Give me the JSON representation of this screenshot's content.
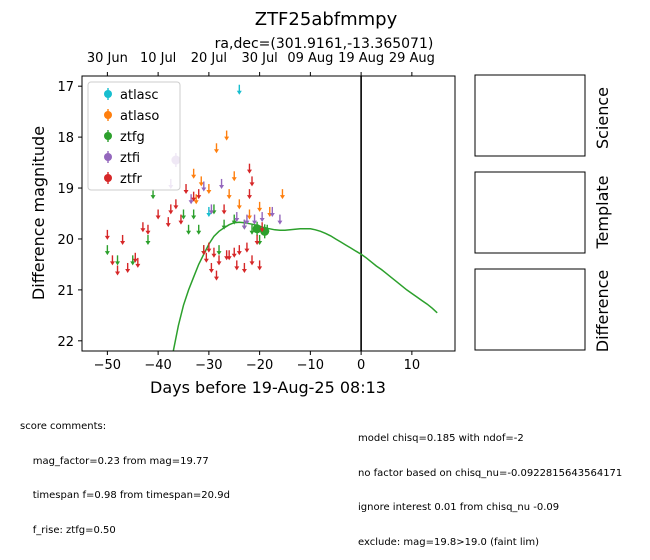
{
  "chart_data": {
    "type": "scatter",
    "title": "ZTF25abfmmpy",
    "subtitle": "ra,dec=(301.9161,-13.365071)",
    "xlabel": "Days before 19-Aug-25 08:13",
    "ylabel": "Difference magnitude",
    "xlim": [
      -55,
      18.5
    ],
    "ylim": [
      22.2,
      16.8
    ],
    "y_inverted": true,
    "x_ticks": [
      -50,
      -40,
      -30,
      -20,
      -10,
      0,
      10
    ],
    "x_tick_labels": [
      "−50",
      "−40",
      "−30",
      "−20",
      "−10",
      "0",
      "10"
    ],
    "y_ticks": [
      17,
      18,
      19,
      20,
      21,
      22
    ],
    "y_tick_labels": [
      "17",
      "18",
      "19",
      "20",
      "21",
      "22"
    ],
    "top_axis_ticks": [
      {
        "x": -50,
        "label": "30 Jun"
      },
      {
        "x": -40,
        "label": "10 Jul"
      },
      {
        "x": -30,
        "label": "20 Jul"
      },
      {
        "x": -20,
        "label": "30 Jul"
      },
      {
        "x": -10,
        "label": "09 Aug"
      },
      {
        "x": 0,
        "label": "19 Aug"
      },
      {
        "x": 10,
        "label": "29 Aug"
      }
    ],
    "vline_x": 0,
    "legend": {
      "placement": "upper-left",
      "entries": [
        {
          "name": "atlasc",
          "color": "#17becf"
        },
        {
          "name": "atlaso",
          "color": "#ff7f0e"
        },
        {
          "name": "ztfg",
          "color": "#2ca02c"
        },
        {
          "name": "ztfi",
          "color": "#9467bd"
        },
        {
          "name": "ztfr",
          "color": "#d62728"
        }
      ]
    },
    "series": [
      {
        "name": "atlasc",
        "color": "#17becf",
        "upper_limits": [
          [
            -24.0,
            17.05
          ],
          [
            -30.0,
            19.45
          ]
        ],
        "detections": []
      },
      {
        "name": "atlaso",
        "color": "#ff7f0e",
        "upper_limits": [
          [
            -28.5,
            18.2
          ],
          [
            -26.5,
            17.95
          ],
          [
            -33.0,
            18.7
          ],
          [
            -31.5,
            18.85
          ],
          [
            -30.0,
            19.0
          ],
          [
            -26.0,
            19.1
          ],
          [
            -25.0,
            18.75
          ],
          [
            -24.0,
            19.3
          ],
          [
            -22.0,
            19.5
          ],
          [
            -20.0,
            19.35
          ],
          [
            -18.0,
            19.45
          ],
          [
            -15.5,
            19.1
          ],
          [
            -32.5,
            19.2
          ]
        ],
        "detections": []
      },
      {
        "name": "ztfg",
        "color": "#2ca02c",
        "upper_limits": [
          [
            -50.0,
            20.2
          ],
          [
            -48.0,
            20.4
          ],
          [
            -45.0,
            20.4
          ],
          [
            -42.0,
            20.0
          ],
          [
            -41.0,
            19.1
          ],
          [
            -35.0,
            19.5
          ],
          [
            -34.0,
            19.8
          ],
          [
            -33.0,
            19.5
          ],
          [
            -32.0,
            19.8
          ],
          [
            -31.0,
            20.2
          ],
          [
            -29.0,
            19.4
          ],
          [
            -28.0,
            20.2
          ],
          [
            -27.0,
            19.7
          ],
          [
            -25.0,
            19.6
          ],
          [
            -23.0,
            19.7
          ],
          [
            -21.5,
            19.8
          ],
          [
            -20.0,
            20.0
          ],
          [
            -18.5,
            19.8
          ]
        ],
        "detections": [
          [
            -20.5,
            19.8
          ],
          [
            -19.0,
            19.85
          ]
        ]
      },
      {
        "name": "ztfi",
        "color": "#9467bd",
        "upper_limits": [
          [
            -37.5,
            18.9
          ],
          [
            -33.5,
            19.2
          ],
          [
            -31.0,
            18.95
          ],
          [
            -29.5,
            19.4
          ],
          [
            -27.5,
            18.9
          ],
          [
            -24.5,
            19.55
          ],
          [
            -22.5,
            19.6
          ],
          [
            -21.0,
            19.6
          ],
          [
            -19.5,
            19.55
          ],
          [
            -17.5,
            19.45
          ],
          [
            -23.0,
            19.7
          ],
          [
            -16.0,
            19.6
          ]
        ],
        "detections": [
          [
            -36.5,
            18.45
          ]
        ]
      },
      {
        "name": "ztfr",
        "color": "#d62728",
        "upper_limits": [
          [
            -50.0,
            19.9
          ],
          [
            -49.0,
            20.4
          ],
          [
            -48.0,
            20.6
          ],
          [
            -47.0,
            20.0
          ],
          [
            -46.0,
            20.55
          ],
          [
            -44.5,
            20.35
          ],
          [
            -44.0,
            20.45
          ],
          [
            -43.0,
            19.75
          ],
          [
            -42.0,
            19.8
          ],
          [
            -40.0,
            19.5
          ],
          [
            -38.0,
            19.65
          ],
          [
            -37.5,
            19.4
          ],
          [
            -36.5,
            19.3
          ],
          [
            -35.5,
            19.6
          ],
          [
            -34.5,
            19.0
          ],
          [
            -33.0,
            19.15
          ],
          [
            -32.0,
            19.1
          ],
          [
            -31.0,
            20.2
          ],
          [
            -30.5,
            20.35
          ],
          [
            -30.0,
            20.15
          ],
          [
            -29.5,
            20.55
          ],
          [
            -29.0,
            20.25
          ],
          [
            -28.5,
            20.7
          ],
          [
            -28.0,
            20.4
          ],
          [
            -27.0,
            19.4
          ],
          [
            -26.5,
            20.3
          ],
          [
            -26.0,
            20.3
          ],
          [
            -25.0,
            20.25
          ],
          [
            -24.5,
            20.5
          ],
          [
            -24.0,
            20.2
          ],
          [
            -23.0,
            20.55
          ],
          [
            -22.5,
            20.15
          ],
          [
            -22.0,
            19.1
          ],
          [
            -22.0,
            18.6
          ],
          [
            -21.5,
            18.85
          ],
          [
            -21.5,
            20.4
          ],
          [
            -20.5,
            20.0
          ],
          [
            -20.0,
            20.5
          ],
          [
            -19.5,
            19.75
          ]
        ],
        "detections": []
      }
    ],
    "model_curve": {
      "color": "#2ca02c",
      "x": [
        -37.0,
        -36.0,
        -35.0,
        -34.0,
        -33.0,
        -32.0,
        -31.0,
        -30.0,
        -29.0,
        -28.0,
        -27.0,
        -26.0,
        -25.0,
        -24.0,
        -23.0,
        -22.0,
        -21.0,
        -20.0,
        -19.0,
        -18.0,
        -17.0,
        -16.0,
        -15.0,
        -14.0,
        -13.0,
        -12.0,
        -11.0,
        -10.0,
        -9.0,
        -8.0,
        -7.0,
        -6.0,
        -5.0,
        -4.0,
        -3.0,
        -2.0,
        -1.0,
        0.0,
        1.0,
        2.0,
        3.0,
        4.0,
        5.0,
        6.0,
        7.0,
        8.0,
        9.0,
        10.0,
        11.0,
        12.0,
        13.0,
        14.0,
        15.0
      ],
      "y": [
        22.2,
        21.7,
        21.3,
        21.0,
        20.75,
        20.5,
        20.3,
        20.1,
        19.95,
        19.85,
        19.78,
        19.72,
        19.68,
        19.67,
        19.68,
        19.7,
        19.72,
        19.75,
        19.78,
        19.8,
        19.82,
        19.83,
        19.83,
        19.82,
        19.81,
        19.8,
        19.8,
        19.8,
        19.82,
        19.85,
        19.89,
        19.94,
        20.0,
        20.06,
        20.12,
        20.18,
        20.24,
        20.3,
        20.37,
        20.45,
        20.53,
        20.6,
        20.68,
        20.76,
        20.84,
        20.92,
        21.0,
        21.07,
        21.14,
        21.21,
        21.28,
        21.36,
        21.45
      ]
    }
  },
  "panels": {
    "science_label": "Science",
    "template_label": "Template",
    "difference_label": "Difference"
  },
  "footer": {
    "left_lines": [
      "score comments:",
      "    mag_factor=0.23 from mag=19.77",
      "    timespan f=0.98 from timespan=20.9d",
      "    f_rise: ztfg=0.50"
    ],
    "right_lines": [
      "model chisq=0.185 with ndof=-2",
      "no factor based on chisq_nu=-0.0922815643564171",
      "ignore interest 0.01 from chisq_nu -0.09",
      "exclude: mag=19.8>19.0 (faint lim)"
    ]
  }
}
